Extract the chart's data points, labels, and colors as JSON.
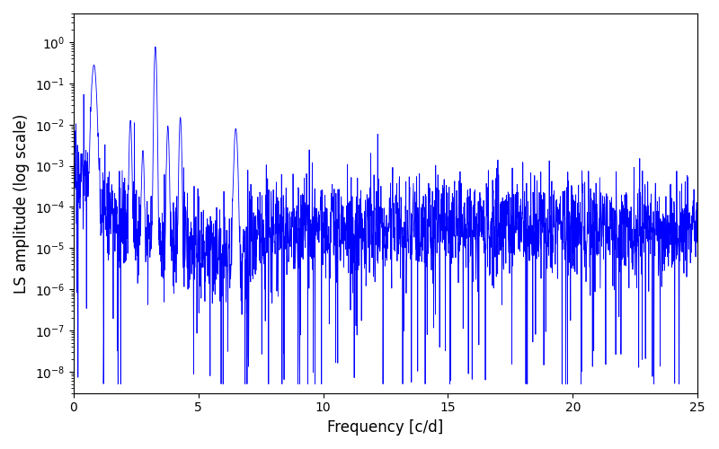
{
  "xlabel": "Frequency [c/d]",
  "ylabel": "LS amplitude (log scale)",
  "xlim": [
    0,
    25
  ],
  "ylim_log": [
    3e-09,
    5.0
  ],
  "line_color": "#0000ff",
  "line_width": 0.6,
  "background_color": "#ffffff",
  "seed": 17,
  "freq_max": 25.0,
  "n_points": 2500,
  "figsize": [
    8.0,
    5.0
  ],
  "dpi": 100,
  "peak1_freq": 0.82,
  "peak1_amp": 0.28,
  "peak2_freq": 3.28,
  "peak2_amp": 0.78,
  "peak3_freq": 6.5,
  "peak3_amp": 0.008
}
